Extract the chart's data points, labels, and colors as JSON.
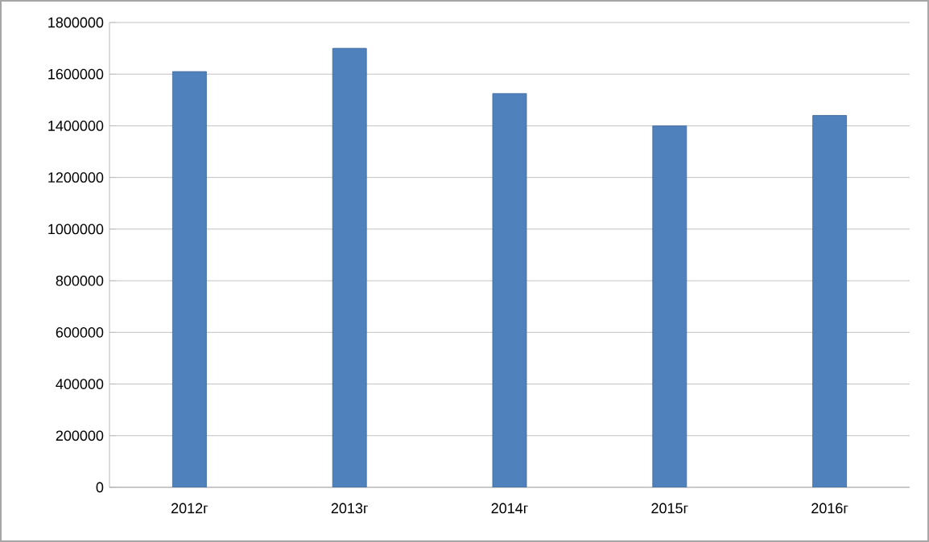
{
  "chart_data": {
    "type": "bar",
    "categories": [
      "2012г",
      "2013г",
      "2014г",
      "2015г",
      "2016г"
    ],
    "values": [
      1610000,
      1700000,
      1525000,
      1400000,
      1440000
    ],
    "color": "#4f81bd",
    "ylim": [
      0,
      1800000
    ],
    "yticks": [
      0,
      200000,
      400000,
      600000,
      800000,
      1000000,
      1200000,
      1400000,
      1600000,
      1800000
    ],
    "grid": "y"
  }
}
